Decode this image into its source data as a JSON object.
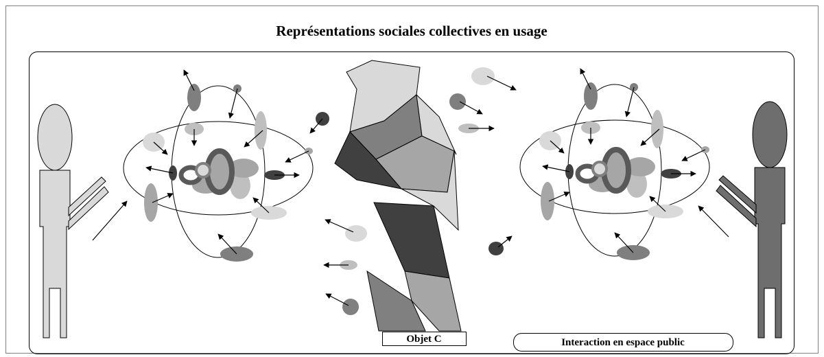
{
  "header": {
    "title": "Représentations sociales collectives en usage"
  },
  "object": {
    "label": "Objet C"
  },
  "context": {
    "label": "Interaction en espace public"
  }
}
